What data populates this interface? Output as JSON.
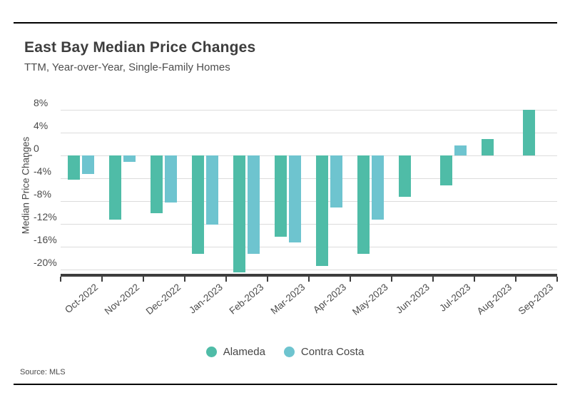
{
  "page": {
    "source": "Source: MLS"
  },
  "chart_data": {
    "type": "bar",
    "title": "East Bay Median Price Changes",
    "subtitle": "TTM, Year-over-Year, Single-Family Homes",
    "ylabel": "Median Price Changes",
    "xlabel": "",
    "categories": [
      "Oct-2022",
      "Nov-2022",
      "Dec-2022",
      "Jan-2023",
      "Feb-2023",
      "Mar-2023",
      "Apr-2023",
      "May-2023",
      "Jun-2023",
      "Jul-2023",
      "Aug-2023",
      "Sep-2023"
    ],
    "series": [
      {
        "name": "Alameda",
        "color": "#4fbca7",
        "values": [
          -4.3,
          -11.3,
          -10.1,
          -17.3,
          -20.5,
          -14.2,
          -19.4,
          -17.3,
          -7.3,
          -5.3,
          2.9,
          8.0
        ]
      },
      {
        "name": "Contra Costa",
        "color": "#6ec4cf",
        "values": [
          -3.2,
          -1.1,
          -8.3,
          -12.1,
          -17.3,
          -15.3,
          -9.1,
          -11.3,
          null,
          1.8,
          null,
          null
        ]
      }
    ],
    "yticks": [
      {
        "value": 8,
        "label": "8%"
      },
      {
        "value": 4,
        "label": "4%"
      },
      {
        "value": 0,
        "label": "0"
      },
      {
        "value": -4,
        "label": "-4%"
      },
      {
        "value": -8,
        "label": "-8%"
      },
      {
        "value": -12,
        "label": "-12%"
      },
      {
        "value": -16,
        "label": "-16%"
      },
      {
        "value": -20,
        "label": "-20%"
      }
    ],
    "ylim": [
      -20.75,
      9.75
    ],
    "grid": true,
    "legend_position": "bottom"
  }
}
